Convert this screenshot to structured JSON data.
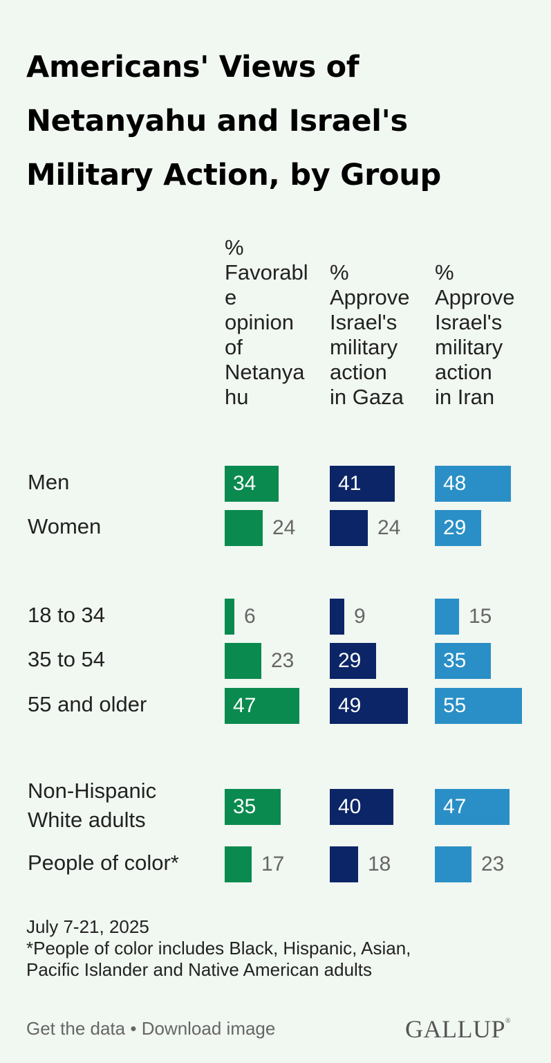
{
  "title_lines": [
    "Americans' Views of",
    "Netanyahu and Israel's",
    "Military Action, by Group"
  ],
  "colors": {
    "favorable": "#0a8a4f",
    "gaza": "#0b2566",
    "iran": "#2a8fc6"
  },
  "chart_data": {
    "type": "bar",
    "title": "Americans' Views of Netanyahu and Israel's Military Action, by Group",
    "categories": [
      "Men",
      "Women",
      "18 to 34",
      "35 to 54",
      "55 and older",
      "Non-Hispanic White adults",
      "People of color*"
    ],
    "series": [
      {
        "name": "% Favorable opinion of Netanyahu",
        "values": [
          34,
          24,
          6,
          23,
          47,
          35,
          17
        ]
      },
      {
        "name": "% Approve Israel's military action in Gaza",
        "values": [
          41,
          24,
          9,
          29,
          49,
          40,
          18
        ]
      },
      {
        "name": "% Approve Israel's military action in Iran",
        "values": [
          48,
          29,
          15,
          35,
          55,
          47,
          23
        ]
      }
    ],
    "xlabel": "",
    "ylabel": ""
  },
  "row_labels": [
    [
      "Men"
    ],
    [
      "Women"
    ],
    [
      "18 to 34"
    ],
    [
      "35 to 54"
    ],
    [
      "55 and older"
    ],
    [
      "Non-Hispanic",
      "White adults"
    ],
    [
      "People of color*"
    ]
  ],
  "column_headers": [
    [
      "%",
      "Favorabl",
      "e",
      "opinion",
      "of",
      "Netanya",
      "hu"
    ],
    [
      "%",
      "Approve",
      "Israel's",
      "military",
      "action",
      "in Gaza"
    ],
    [
      "%",
      "Approve",
      "Israel's",
      "military",
      "action",
      "in Iran"
    ]
  ],
  "footnote": {
    "date": "July 7-21, 2025",
    "note_line1": "*People of color includes Black, Hispanic, Asian,",
    "note_line2": "Pacific Islander and Native American adults"
  },
  "footer": {
    "get_data": "Get the data",
    "separator": "•",
    "download": "Download image",
    "logo": "GALLUP",
    "logo_mark": "®"
  }
}
